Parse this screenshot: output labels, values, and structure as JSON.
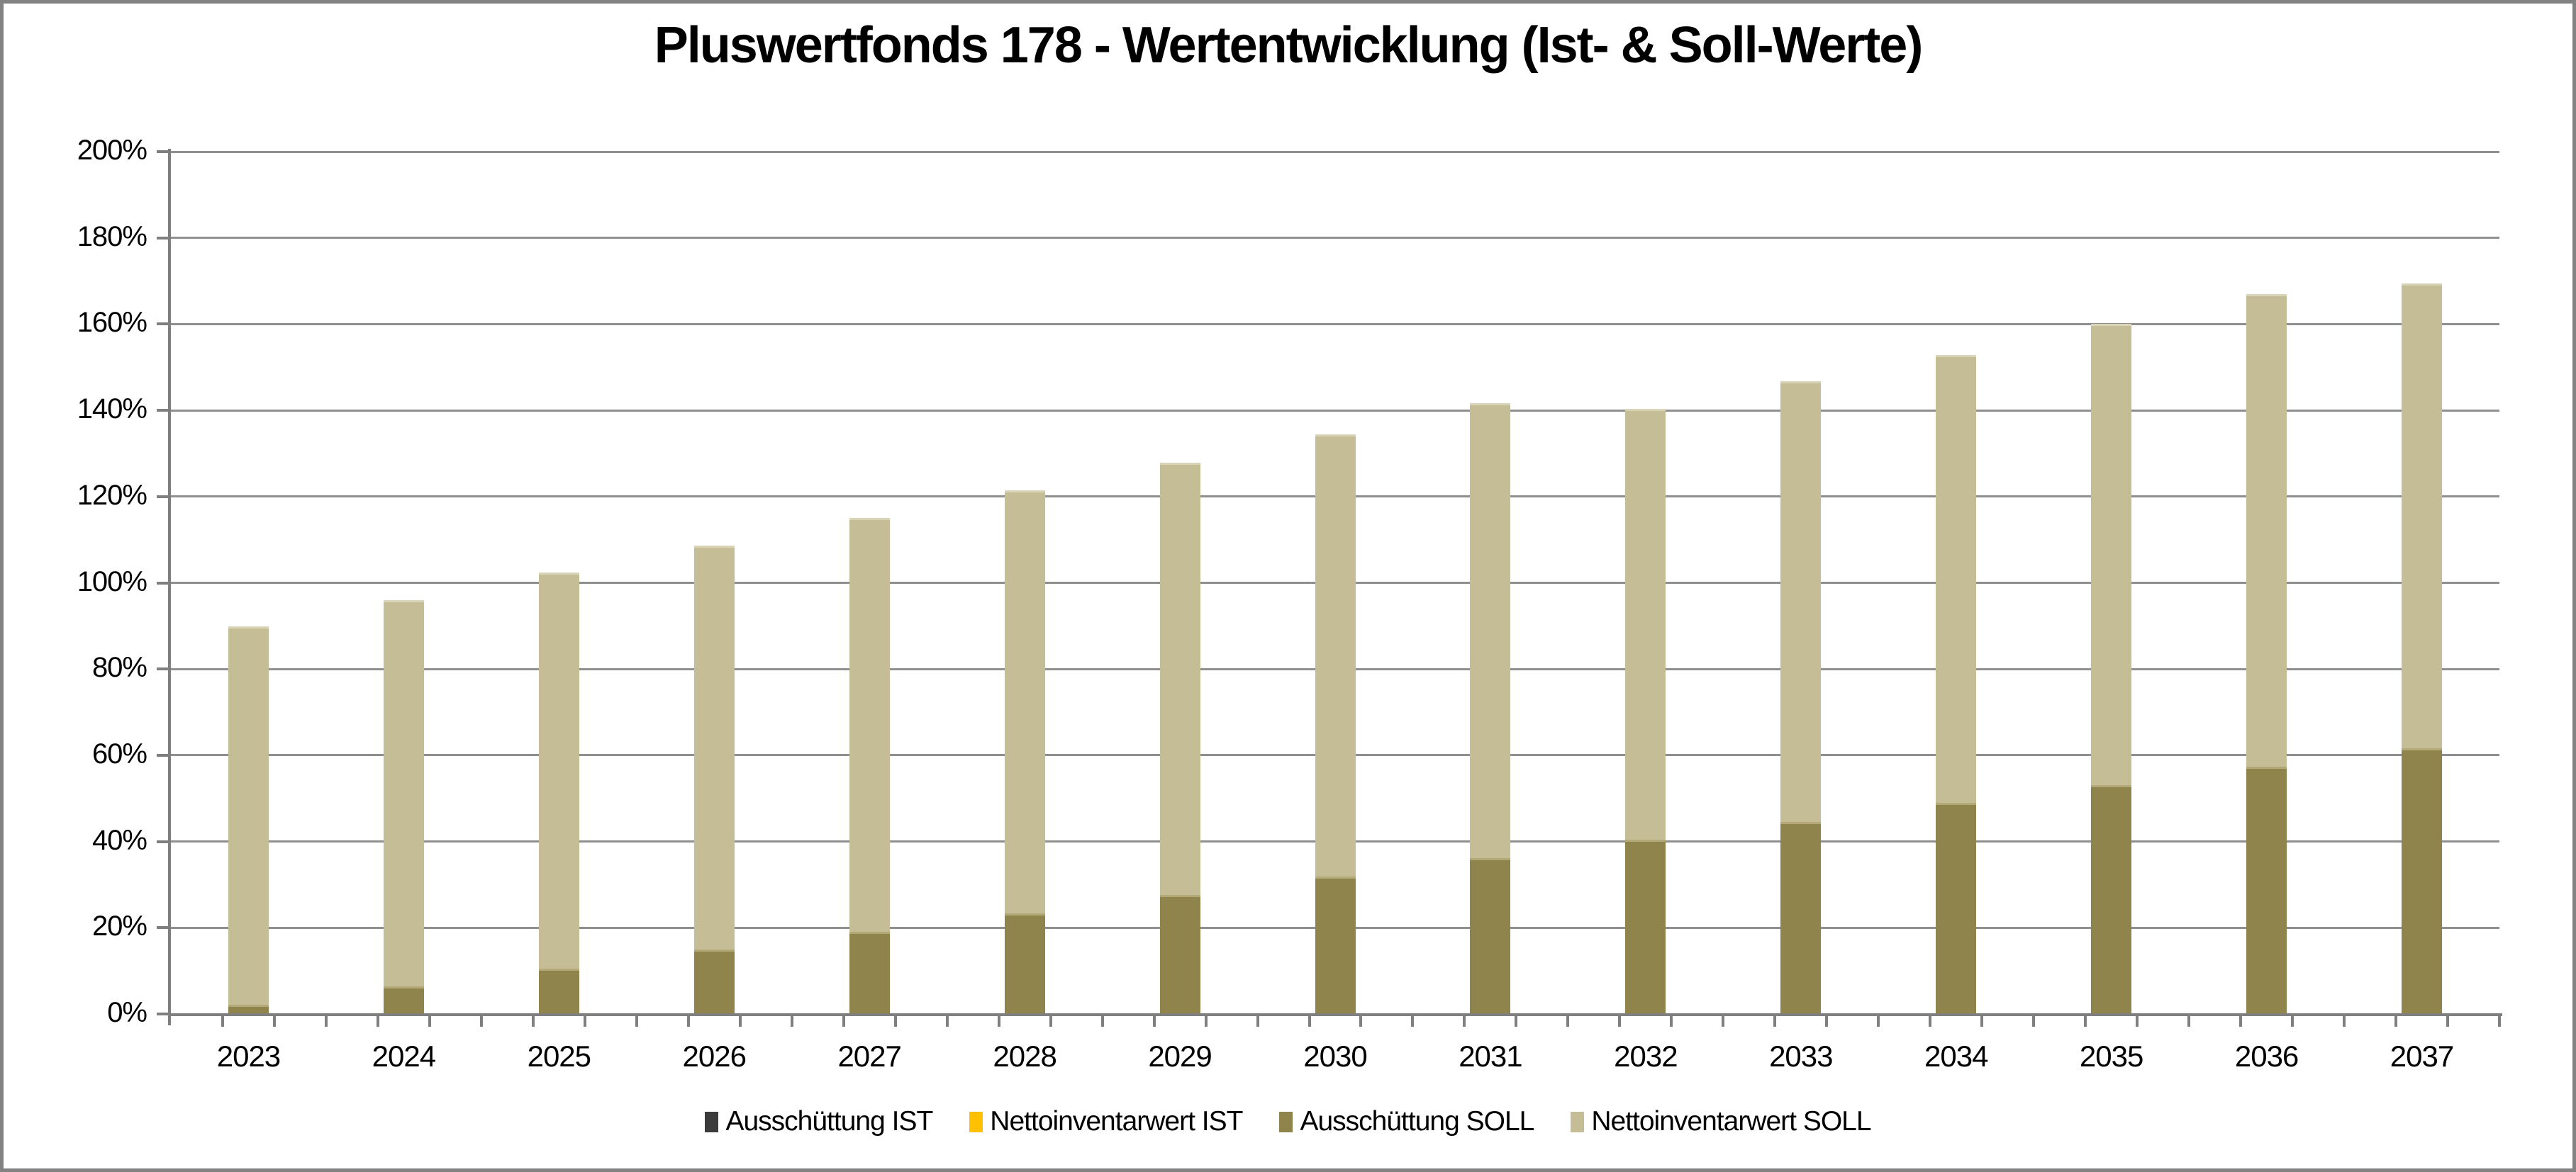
{
  "title": "Pluswertfonds 178 - Wertentwicklung (Ist- & Soll-Werte)",
  "colors": {
    "frame": "#828282",
    "gridline": "#8f8f8f",
    "axis": "#7f7f7f",
    "text": "#000000",
    "ausschuettung_ist": "#3B3B3B",
    "nettoinventarwert_ist": "#FFC000",
    "ausschuettung_soll": "#8E844C",
    "nettoinventarwert_soll": "#C5BD96"
  },
  "chart_data": {
    "type": "bar",
    "stacked": true,
    "title": "Pluswertfonds 178 - Wertentwicklung (Ist- & Soll-Werte)",
    "categories": [
      "2023",
      "2024",
      "2025",
      "2026",
      "2027",
      "2028",
      "2029",
      "2030",
      "2031",
      "2032",
      "2033",
      "2034",
      "2035",
      "2036",
      "2037"
    ],
    "series": [
      {
        "name": "Ausschüttung IST",
        "color": "#3B3B3B",
        "highlight": "#565656",
        "values": [
          0,
          0,
          0,
          0,
          0,
          0,
          0,
          0,
          0,
          0,
          0,
          0,
          0,
          0,
          0
        ]
      },
      {
        "name": "Nettoinventarwert IST",
        "color": "#FFC000",
        "highlight": "#FFD75E",
        "values": [
          0,
          0,
          0,
          0,
          0,
          0,
          0,
          0,
          0,
          0,
          0,
          0,
          0,
          0,
          0
        ]
      },
      {
        "name": "Ausschüttung SOLL",
        "color": "#8E844C",
        "highlight": "#B3A877",
        "values": [
          2.1,
          6.4,
          10.6,
          14.9,
          19.1,
          23.4,
          27.6,
          31.9,
          36.1,
          40.4,
          44.6,
          48.9,
          53.1,
          57.4,
          61.6
        ]
      },
      {
        "name": "Nettoinventarwert SOLL",
        "color": "#C5BD96",
        "highlight": "#D9D3B8",
        "values": [
          87.8,
          89.6,
          91.8,
          93.7,
          95.9,
          98.0,
          100.2,
          102.6,
          105.6,
          99.9,
          102.1,
          104.0,
          107.0,
          109.6,
          107.9
        ]
      }
    ],
    "stacked_totals": [
      89.9,
      96.0,
      102.4,
      108.6,
      115.0,
      121.4,
      127.8,
      134.5,
      141.7,
      140.3,
      146.7,
      152.9,
      160.1,
      167.0,
      169.5
    ],
    "xlabel": "",
    "ylabel": "",
    "ylim": [
      0,
      200
    ],
    "y_tick_step": 20,
    "y_tick_labels": [
      "0%",
      "20%",
      "40%",
      "60%",
      "80%",
      "100%",
      "120%",
      "140%",
      "160%",
      "180%",
      "200%"
    ],
    "grid": true,
    "legend_position": "bottom",
    "minor_x_ticks_per_category": 3
  },
  "legend": {
    "items": [
      {
        "label": "Ausschüttung IST",
        "color": "#3B3B3B"
      },
      {
        "label": "Nettoinventarwert IST",
        "color": "#FFC000"
      },
      {
        "label": "Ausschüttung SOLL",
        "color": "#8E844C"
      },
      {
        "label": "Nettoinventarwert SOLL",
        "color": "#C5BD96"
      }
    ]
  }
}
